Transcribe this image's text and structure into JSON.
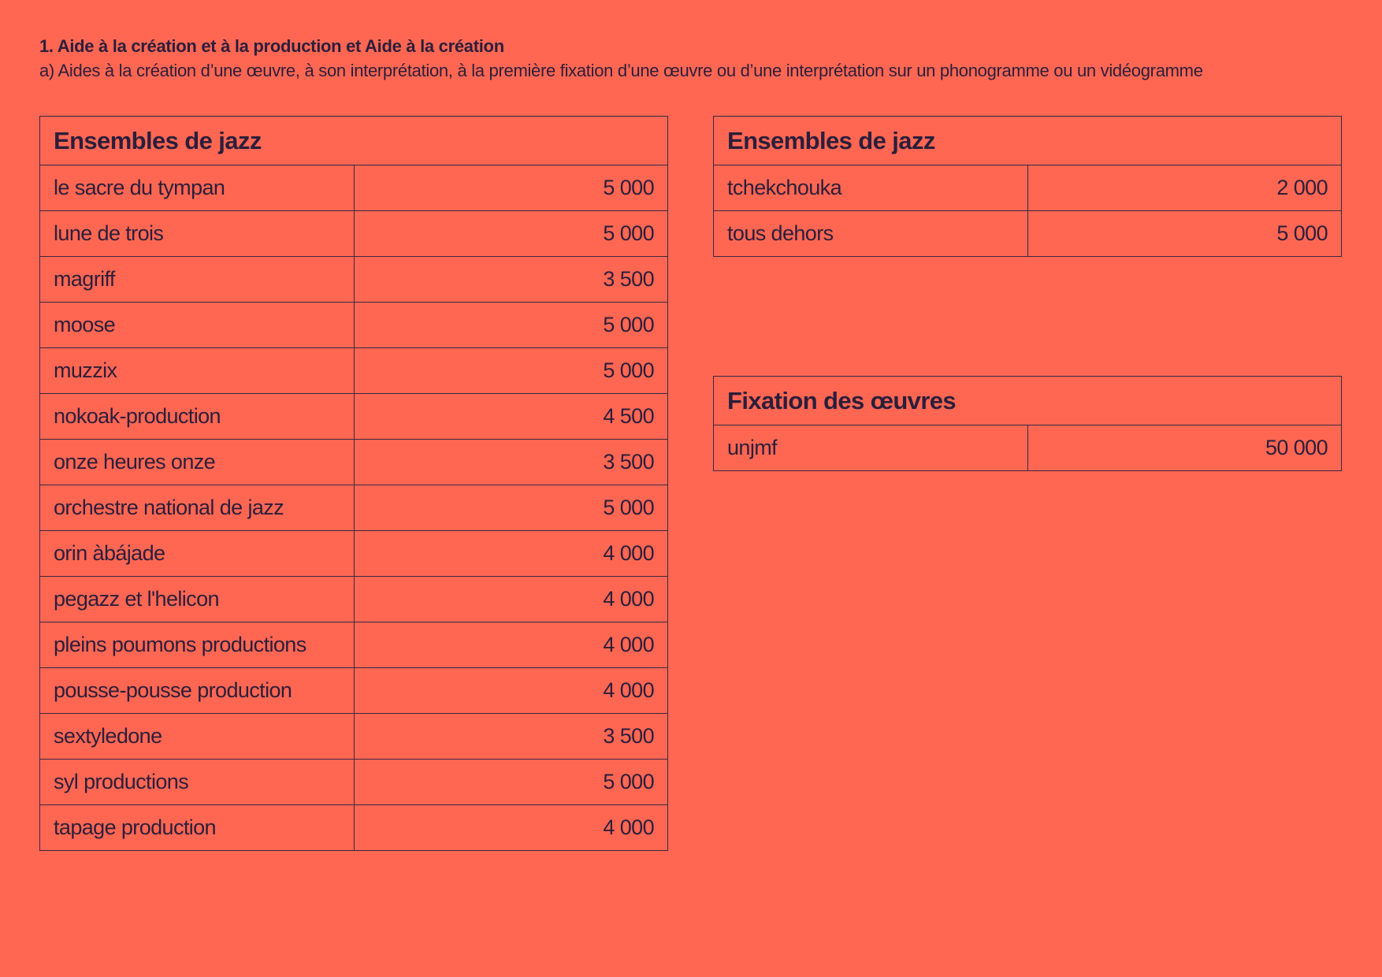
{
  "header": {
    "title": "1. Aide à la création et à la production et Aide à la création",
    "subtitle": "a) Aides à la création d’une œuvre, à son interprétation, à la première fixation d’une œuvre ou d’une interprétation sur un phonogramme ou un vidéogramme"
  },
  "tables": [
    {
      "title": "Ensembles de jazz",
      "rows": [
        [
          "le sacre du tympan",
          "5 000"
        ],
        [
          "lune de trois",
          "5 000"
        ],
        [
          "magriff",
          "3 500"
        ],
        [
          "moose",
          "5 000"
        ],
        [
          "muzzix",
          "5 000"
        ],
        [
          "nokoak-production",
          "4 500"
        ],
        [
          "onze heures onze",
          "3 500"
        ],
        [
          "orchestre national de jazz",
          "5 000"
        ],
        [
          "orin àbájade",
          "4 000"
        ],
        [
          "pegazz et l'helicon",
          "4 000"
        ],
        [
          "pleins poumons productions",
          "4 000"
        ],
        [
          "pousse-pousse production",
          "4 000"
        ],
        [
          "sextyledone",
          "3 500"
        ],
        [
          "syl productions",
          "5 000"
        ],
        [
          "tapage production",
          "4 000"
        ]
      ]
    },
    {
      "title": "Ensembles de jazz",
      "rows": [
        [
          "tchekchouka",
          "2 000"
        ],
        [
          "tous dehors",
          "5 000"
        ]
      ]
    },
    {
      "title": "Fixation des œuvres",
      "rows": [
        [
          "unjmf",
          "50 000"
        ]
      ]
    }
  ]
}
